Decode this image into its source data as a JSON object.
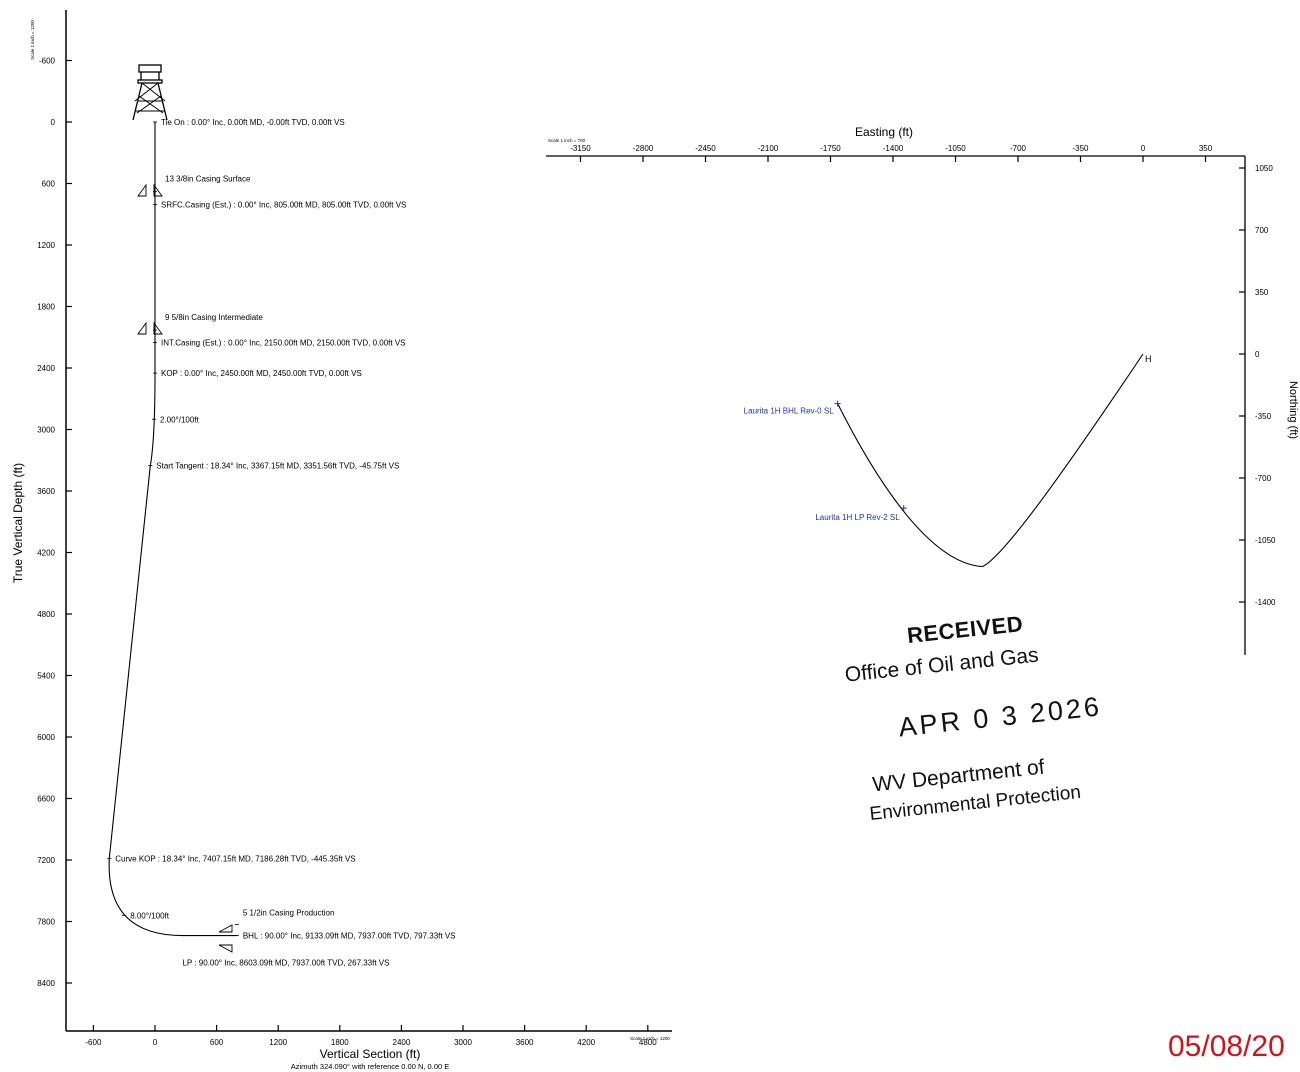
{
  "chart_data": [
    {
      "type": "line",
      "xlabel": "Vertical Section (ft)",
      "xlabel_sub": "Azimuth 324.090° with reference 0.00 N, 0.00 E",
      "ylabel": "True Vertical Depth (ft)",
      "scale_left": "Scale 1 inch = 1200",
      "scale_right": "Scale 1 inch = 1200",
      "x_ticks": [
        -600,
        0,
        600,
        1200,
        1800,
        2400,
        3000,
        3600,
        4200,
        4800
      ],
      "y_ticks": [
        -600,
        0,
        600,
        1200,
        1800,
        2400,
        3000,
        3600,
        4200,
        4800,
        5400,
        6000,
        6600,
        7200,
        7800,
        8400
      ],
      "y_inverted": true,
      "xlim": [
        -900,
        5100
      ],
      "ylim": [
        -1100,
        8950
      ],
      "series": [
        {
          "x": [
            0,
            0,
            0,
            0,
            -12,
            -45.75,
            -445.35,
            -420,
            -350,
            -200,
            0,
            267.33,
            797.33
          ],
          "y": [
            0,
            805,
            2150,
            2450,
            2800,
            3351.56,
            7186.28,
            7500,
            7700,
            7870,
            7930,
            7937,
            7937
          ]
        }
      ],
      "annotations": [
        {
          "text": "Tie On : 0.00° Inc, 0.00ft MD, -0.00ft TVD, 0.00ft VS",
          "x": 0,
          "y": 0
        },
        {
          "text": "13 3/8in Casing Surface",
          "x": 0,
          "y": 680
        },
        {
          "text": "SRFC.Casing (Est.) : 0.00° Inc, 805.00ft MD, 805.00ft TVD, 0.00ft VS",
          "x": 0,
          "y": 805
        },
        {
          "text": "9 5/8in Casing Intermediate",
          "x": 0,
          "y": 2030
        },
        {
          "text": "INT.Casing (Est.) : 0.00° Inc, 2150.00ft MD, 2150.00ft TVD, 0.00ft VS",
          "x": 0,
          "y": 2150
        },
        {
          "text": "KOP : 0.00° Inc, 2450.00ft MD, 2450.00ft TVD, 0.00ft VS",
          "x": 0,
          "y": 2450
        },
        {
          "text": "2.00°/100ft",
          "x": -10,
          "y": 2900
        },
        {
          "text": "Start Tangent  : 18.34° Inc, 3367.15ft MD, 3351.56ft TVD, -45.75ft VS",
          "x": -45.75,
          "y": 3351.56
        },
        {
          "text": "Curve KOP : 18.34° Inc, 7407.15ft MD, 7186.28ft TVD, -445.35ft VS",
          "x": -445.35,
          "y": 7186.28
        },
        {
          "text": "8.00°/100ft",
          "x": -300,
          "y": 7740
        },
        {
          "text": "5 1/2in Casing Production",
          "x": 797.33,
          "y": 7830
        },
        {
          "text": "BHL : 90.00° Inc, 9133.09ft MD, 7937.00ft TVD, 797.33ft VS",
          "x": 797.33,
          "y": 7937
        },
        {
          "text": "LP : 90.00° Inc, 8603.09ft MD, 7937.00ft TVD, 267.33ft VS",
          "x": 267.33,
          "y": 7937
        }
      ]
    },
    {
      "type": "line",
      "xlabel": "Easting (ft)",
      "ylabel": "Northing (ft)",
      "scale": "Scale 1 inch = 700",
      "x_ticks": [
        -3150,
        -2800,
        -2450,
        -2100,
        -1750,
        -1400,
        -1050,
        -700,
        -350,
        0,
        350
      ],
      "y_ticks": [
        1050,
        700,
        350,
        0,
        -350,
        -700,
        -1050,
        -1400
      ],
      "xlim": [
        -3300,
        450
      ],
      "ylim": [
        -1700,
        1120
      ],
      "series": [
        {
          "x": [
            -1710,
            -1540,
            -1340,
            -1150,
            -1000,
            -900,
            -850,
            -600,
            -300,
            0
          ],
          "y": [
            -280,
            -600,
            -870,
            -1080,
            -1180,
            -1200,
            -1170,
            -880,
            -480,
            0
          ]
        }
      ],
      "points": [
        {
          "label": "Laurita 1H BHL Rev-0 SL",
          "x": -1710,
          "y": -280
        },
        {
          "label": "Laurita 1H LP Rev-2 SL",
          "x": -1340,
          "y": -870
        }
      ],
      "start_label": "H"
    }
  ],
  "stamp": {
    "line1": "RECEIVED",
    "line2": "Office of Oil and Gas",
    "date": "APR 0 3 2026",
    "line3": "WV Department of",
    "line4": "Environmental Protection"
  },
  "page_date": "05/08/20"
}
